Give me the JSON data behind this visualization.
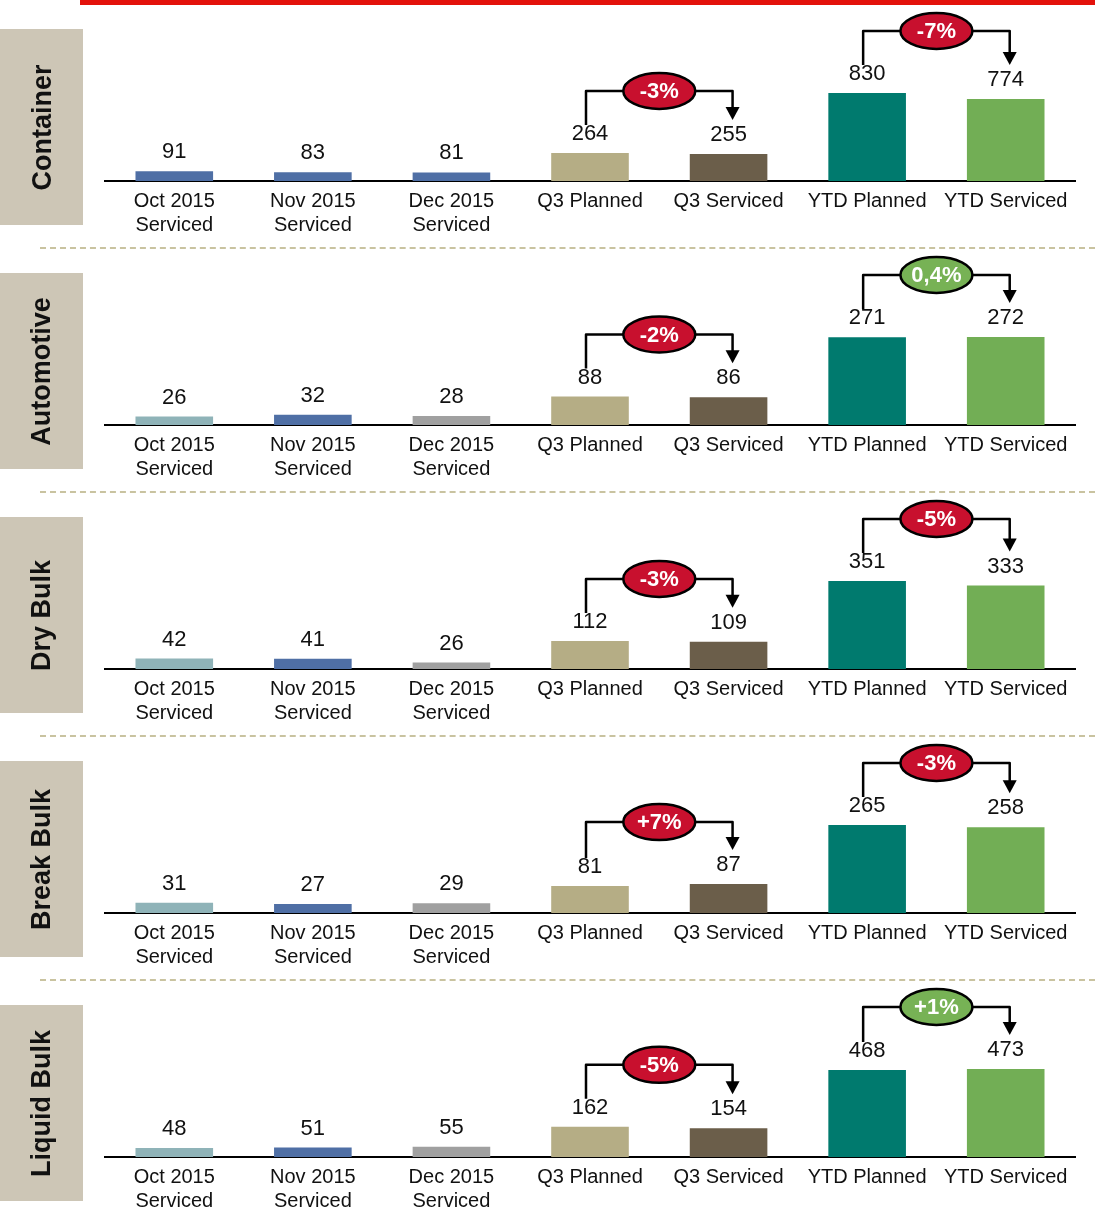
{
  "chart_data": [
    {
      "type": "bar",
      "title": "Container",
      "categories": [
        "Oct 2015 Serviced",
        "Nov 2015 Serviced",
        "Dec 2015 Serviced",
        "Q3 Planned",
        "Q3 Serviced",
        "YTD Planned",
        "YTD Serviced"
      ],
      "values": [
        91,
        83,
        81,
        264,
        255,
        830,
        774
      ],
      "colors": [
        "#4f6fa5",
        "#4f6fa5",
        "#4f6fa5",
        "#b5ad85",
        "#6b5e4a",
        "#007a6e",
        "#72ae55"
      ],
      "data_labels": true,
      "annotations": [
        "-3%",
        "-7%"
      ]
    },
    {
      "type": "bar",
      "title": "Automotive",
      "categories": [
        "Oct 2015 Serviced",
        "Nov 2015 Serviced",
        "Dec 2015 Serviced",
        "Q3 Planned",
        "Q3 Serviced",
        "YTD Planned",
        "YTD Serviced"
      ],
      "values": [
        26,
        32,
        28,
        88,
        86,
        271,
        272
      ],
      "colors": [
        "#8fb3b8",
        "#4f6fa5",
        "#a0a0a0",
        "#b5ad85",
        "#6b5e4a",
        "#007a6e",
        "#72ae55"
      ],
      "data_labels": true,
      "annotations": [
        "-2%",
        "0,4%"
      ]
    },
    {
      "type": "bar",
      "title": "Dry Bulk",
      "categories": [
        "Oct 2015 Serviced",
        "Nov 2015 Serviced",
        "Dec 2015 Serviced",
        "Q3 Planned",
        "Q3 Serviced",
        "YTD Planned",
        "YTD Serviced"
      ],
      "values": [
        42,
        41,
        26,
        112,
        109,
        351,
        333
      ],
      "colors": [
        "#8fb3b8",
        "#4f6fa5",
        "#a0a0a0",
        "#b5ad85",
        "#6b5e4a",
        "#007a6e",
        "#72ae55"
      ],
      "data_labels": true,
      "annotations": [
        "-3%",
        "-5%"
      ]
    },
    {
      "type": "bar",
      "title": "Break Bulk",
      "categories": [
        "Oct 2015 Serviced",
        "Nov 2015 Serviced",
        "Dec 2015 Serviced",
        "Q3 Planned",
        "Q3 Serviced",
        "YTD Planned",
        "YTD Serviced"
      ],
      "values": [
        31,
        27,
        29,
        81,
        87,
        265,
        258
      ],
      "colors": [
        "#8fb3b8",
        "#4f6fa5",
        "#a0a0a0",
        "#b5ad85",
        "#6b5e4a",
        "#007a6e",
        "#72ae55"
      ],
      "data_labels": true,
      "annotations": [
        "+7%",
        "-3%"
      ]
    },
    {
      "type": "bar",
      "title": "Liquid Bulk",
      "categories": [
        "Oct 2015 Serviced",
        "Nov 2015 Serviced",
        "Dec 2015 Serviced",
        "Q3 Planned",
        "Q3 Serviced",
        "YTD Planned",
        "YTD Serviced"
      ],
      "values": [
        48,
        51,
        55,
        162,
        154,
        468,
        473
      ],
      "colors": [
        "#8fb3b8",
        "#4f6fa5",
        "#a0a0a0",
        "#b5ad85",
        "#6b5e4a",
        "#007a6e",
        "#72ae55"
      ],
      "data_labels": true,
      "annotations": [
        "-5%",
        "+1%"
      ]
    }
  ]
}
